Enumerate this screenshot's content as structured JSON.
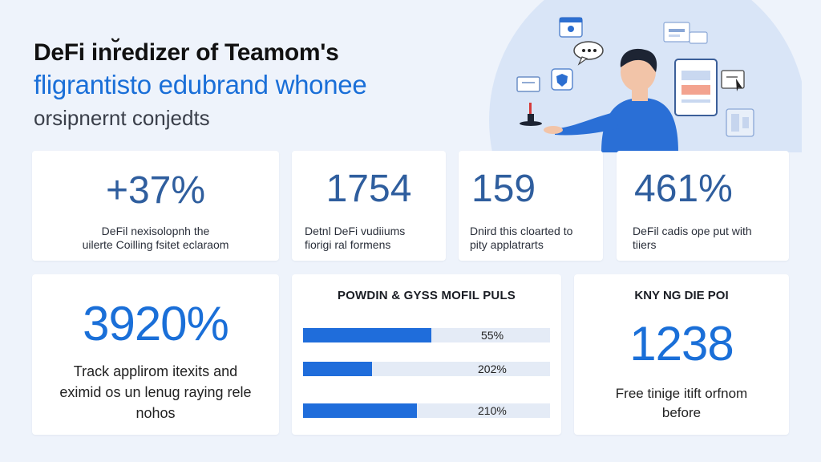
{
  "header": {
    "line1": "DeFi inr̆edizer of Teamom's",
    "line2": "fligrantisto edubrand whonee",
    "line3": "orsipnernt conjedts"
  },
  "stats": [
    {
      "value": "+37%",
      "desc_line1": "DeFil nexisolopnh the",
      "desc_line2": "uilerte Coilling fsitet eclaraom"
    },
    {
      "value": "1754",
      "desc_line1": "Detnl DeFi vudiiums",
      "desc_line2": "fiorigi ral formens"
    },
    {
      "value": "159",
      "desc_line1": "Dnird this cloarted to",
      "desc_line2": "pity applatrarts"
    },
    {
      "value": "461%",
      "desc_line1": "DeFil cadis ope put with",
      "desc_line2": "tiiers"
    }
  ],
  "feature": {
    "value": "3920%",
    "desc_line1": "Track applirom itexits and",
    "desc_line2": "eximid os un lenug raying rele",
    "desc_line3": "nohos"
  },
  "progress": {
    "title": "POWDIN & GYSS MOFIL PULS",
    "bars": [
      {
        "label": "55%",
        "fraction": 0.52
      },
      {
        "label": "202%",
        "fraction": 0.28
      },
      {
        "label": "210%",
        "fraction": 0.46
      }
    ]
  },
  "key": {
    "title": "KNY NG DIE POI",
    "value": "1238",
    "desc_line1": "Free tinige itift orfnom",
    "desc_line2": "before"
  },
  "colors": {
    "background": "#eef3fb",
    "accent_blue": "#1f6ddb",
    "card": "#ffffff",
    "stat_blue": "#2f5e9e"
  },
  "icons": [
    "folder-icon",
    "chat-icon",
    "shield-icon",
    "message-icon",
    "browser-window-icon",
    "cursor-icon",
    "document-icon",
    "cup-icon",
    "person-illustration"
  ]
}
